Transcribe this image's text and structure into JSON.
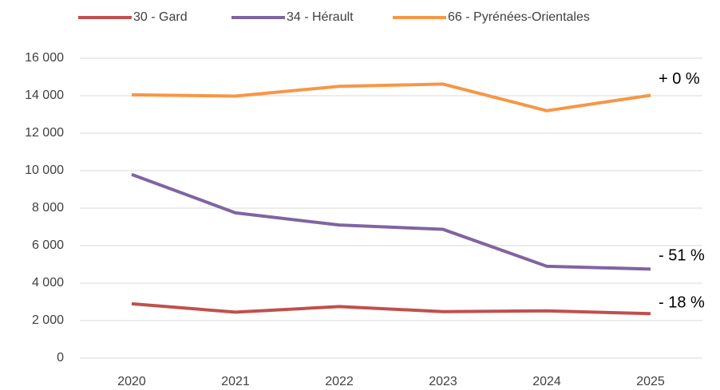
{
  "chart_data": {
    "type": "line",
    "categories": [
      "2020",
      "2021",
      "2022",
      "2023",
      "2024",
      "2025"
    ],
    "series": [
      {
        "name": "30 - Gard",
        "color": "#c0504d",
        "values": [
          2900,
          2450,
          2750,
          2480,
          2520,
          2370
        ],
        "end_label": "- 18 %"
      },
      {
        "name": "34 - Hérault",
        "color": "#8064a2",
        "values": [
          9800,
          7750,
          7100,
          6870,
          4900,
          4750
        ],
        "end_label": "- 51 %"
      },
      {
        "name": "66 - Pyrénées-Orientales",
        "color": "#f79646",
        "values": [
          14050,
          13980,
          14500,
          14620,
          13200,
          14020
        ],
        "end_label": "+ 0 %"
      }
    ],
    "ylim": [
      0,
      16000
    ],
    "yticks": [
      0,
      {
        "value": 2000,
        "label": "2 000"
      },
      {
        "value": 4000,
        "label": "4 000"
      },
      {
        "value": 6000,
        "label": "6 000"
      },
      {
        "value": 8000,
        "label": "8 000"
      },
      {
        "value": 10000,
        "label": "10 000"
      },
      {
        "value": 12000,
        "label": "12 000"
      },
      {
        "value": 14000,
        "label": "14 000"
      },
      {
        "value": 16000,
        "label": "16 000"
      }
    ],
    "grid": true,
    "legend": "top"
  }
}
